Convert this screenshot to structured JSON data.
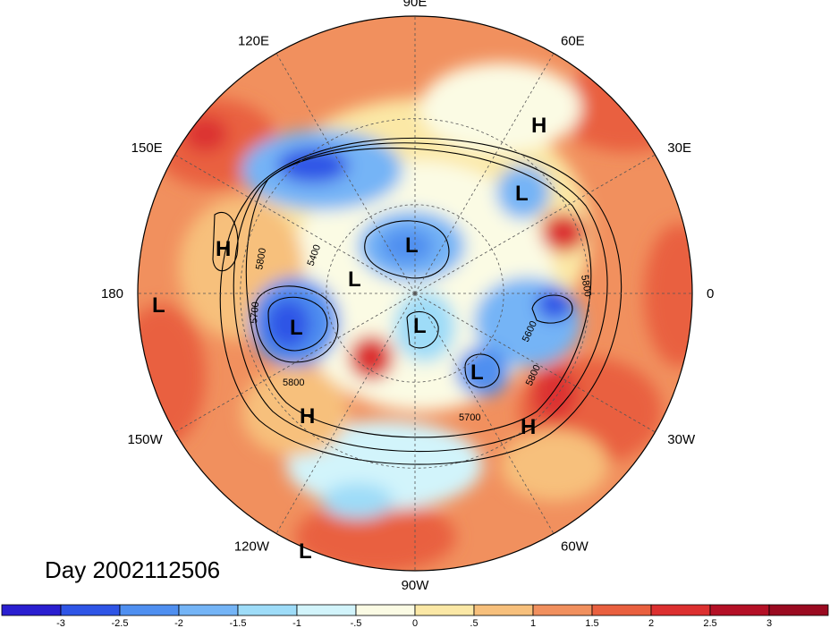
{
  "title": "Day 2002112506",
  "longitude_labels": [
    {
      "text": "90E",
      "lon": 90
    },
    {
      "text": "60E",
      "lon": 60
    },
    {
      "text": "30E",
      "lon": 30
    },
    {
      "text": "0",
      "lon": 0
    },
    {
      "text": "30W",
      "lon": -30
    },
    {
      "text": "60W",
      "lon": -60
    },
    {
      "text": "90W",
      "lon": -90
    },
    {
      "text": "120W",
      "lon": -120
    },
    {
      "text": "150W",
      "lon": -150
    },
    {
      "text": "180",
      "lon": 180
    },
    {
      "text": "150E",
      "lon": 150
    },
    {
      "text": "120E",
      "lon": 120
    }
  ],
  "pressure_centers": [
    {
      "type": "H",
      "label": "H"
    },
    {
      "type": "H",
      "label": "H"
    },
    {
      "type": "L",
      "label": "L"
    },
    {
      "type": "L",
      "label": "L"
    },
    {
      "type": "L",
      "label": "L"
    },
    {
      "type": "L",
      "label": "L"
    },
    {
      "type": "L",
      "label": "L"
    },
    {
      "type": "L",
      "label": "L"
    },
    {
      "type": "H",
      "label": "H"
    },
    {
      "type": "H",
      "label": "H"
    },
    {
      "type": "L",
      "label": "L"
    },
    {
      "type": "L",
      "label": "L"
    }
  ],
  "contour_labels": [
    "5800",
    "5400",
    "5700",
    "5800",
    "5800",
    "5600",
    "5800",
    "5700"
  ],
  "colorbar": {
    "ticks": [
      "-3",
      "-2.5",
      "-2",
      "-1.5",
      "-1",
      "-.5",
      "0",
      ".5",
      "1",
      "1.5",
      "2",
      "2.5",
      "3"
    ],
    "colors": [
      "#2a1fd0",
      "#2f55e6",
      "#4f8ff0",
      "#74b4f6",
      "#9edcf8",
      "#d2f4fb",
      "#fbfbe4",
      "#fbe8a6",
      "#f7c07c",
      "#f1905e",
      "#e9603f",
      "#dc3030",
      "#b41026",
      "#9a0a20"
    ]
  }
}
